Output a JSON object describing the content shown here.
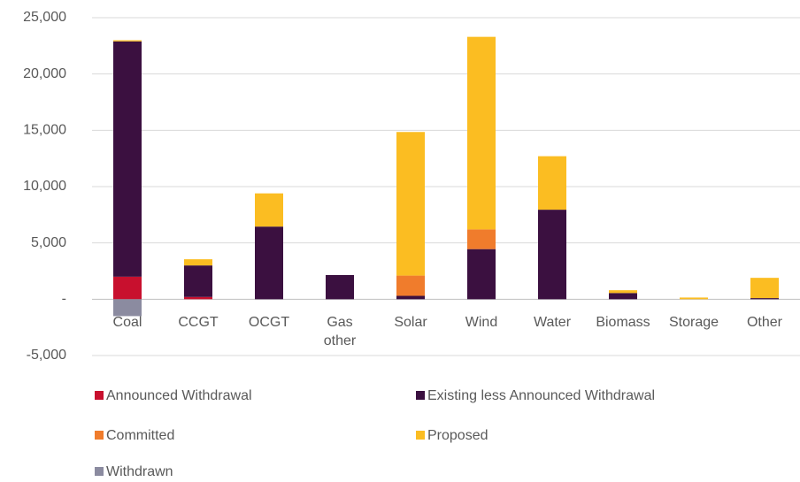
{
  "chart_data": {
    "type": "stacked_bar",
    "categories": [
      "Coal",
      "CCGT",
      "OCGT",
      "Gas other",
      "Solar",
      "Wind",
      "Water",
      "Biomass",
      "Storage",
      "Other"
    ],
    "series": [
      {
        "name": "Announced Withdrawal",
        "color": "#c8102e",
        "values": [
          2000,
          200,
          0,
          0,
          0,
          0,
          0,
          0,
          0,
          0
        ]
      },
      {
        "name": "Existing less Announced Withdrawal",
        "color": "#3b1040",
        "values": [
          20900,
          2800,
          6450,
          2150,
          300,
          4450,
          7950,
          550,
          0,
          100
        ]
      },
      {
        "name": "Committed",
        "color": "#f07c2c",
        "values": [
          0,
          0,
          0,
          0,
          1800,
          1750,
          0,
          0,
          0,
          0
        ]
      },
      {
        "name": "Proposed",
        "color": "#fbbd22",
        "values": [
          100,
          550,
          2950,
          0,
          12750,
          17100,
          4750,
          250,
          150,
          1800
        ]
      },
      {
        "name": "Withdrawn",
        "color": "#8b8ba0",
        "values": [
          -1500,
          0,
          0,
          0,
          0,
          0,
          0,
          0,
          0,
          0
        ]
      }
    ],
    "ylim": [
      -5000,
      25000
    ],
    "yticks": [
      {
        "value": -5000,
        "label": "-5,000"
      },
      {
        "value": 0,
        "label": "-"
      },
      {
        "value": 5000,
        "label": "5,000"
      },
      {
        "value": 10000,
        "label": "10,000"
      },
      {
        "value": 15000,
        "label": "15,000"
      },
      {
        "value": 20000,
        "label": "20,000"
      },
      {
        "value": 25000,
        "label": "25,000"
      }
    ],
    "grid": true
  }
}
